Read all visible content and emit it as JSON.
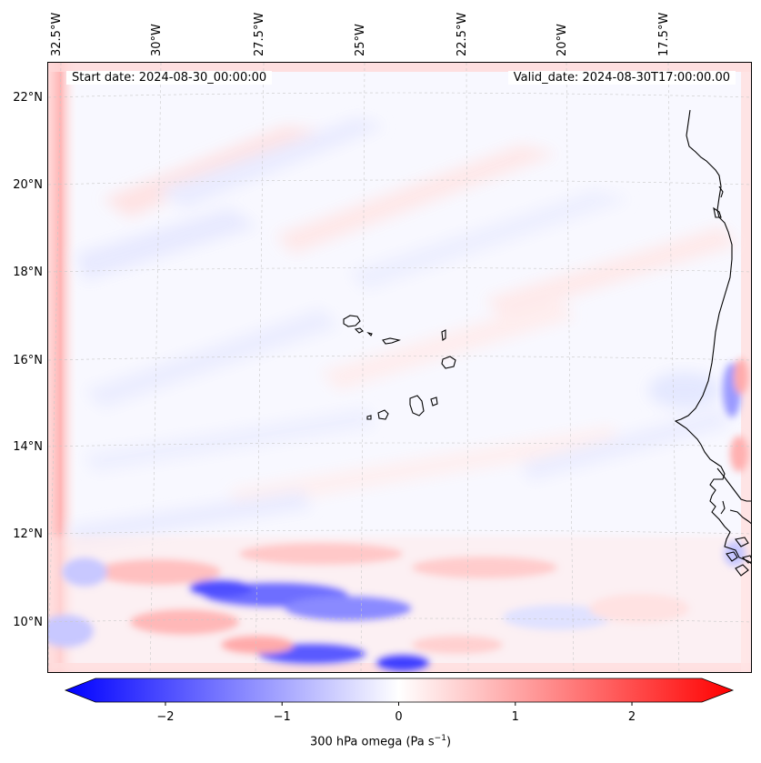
{
  "header": {
    "start_date": "Start date: 2024-08-30_00:00:00",
    "valid_date": "Valid_date: 2024-08-30T17:00:00.00"
  },
  "map": {
    "lon_labels": [
      "32.5°W",
      "30°W",
      "27.5°W",
      "25°W",
      "22.5°W",
      "20°W",
      "17.5°W"
    ],
    "lat_labels": [
      "22°N",
      "20°N",
      "18°N",
      "16°N",
      "14°N",
      "12°N",
      "10°N"
    ]
  },
  "colorbar": {
    "label": "300 hPa omega (Pa s",
    "label_sup": "−1",
    "label_close": ")",
    "ticks": [
      "−2",
      "−1",
      "0",
      "1",
      "2"
    ],
    "tick_values": [
      -2,
      -1,
      0,
      1,
      2
    ],
    "range": [
      -2.6,
      2.6
    ],
    "colors": {
      "min": "#0000ff",
      "mid": "#ffffff",
      "max": "#ff0000"
    }
  }
}
